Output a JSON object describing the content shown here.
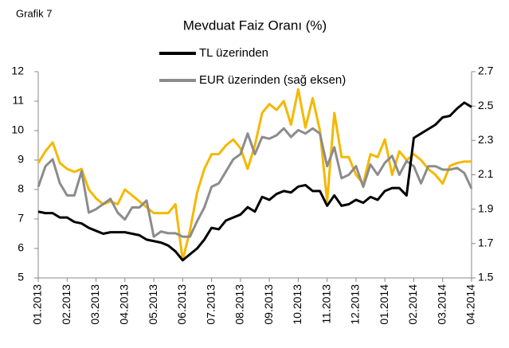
{
  "chart_data": {
    "type": "line",
    "label": "Grafik 7",
    "title": "Mevduat Faiz Oranı (%)",
    "categories": [
      "01.2013",
      null,
      null,
      null,
      "02.2013",
      null,
      null,
      null,
      "03.2013",
      null,
      null,
      null,
      "04.2013",
      null,
      null,
      null,
      "05.2013",
      null,
      null,
      null,
      "06.2013",
      null,
      null,
      null,
      "07.2013",
      null,
      null,
      null,
      "08.2013",
      null,
      null,
      null,
      "09.2013",
      null,
      null,
      null,
      "10.2013",
      null,
      null,
      null,
      "11.2013",
      null,
      null,
      null,
      "12.2013",
      null,
      null,
      null,
      "01.2014",
      null,
      null,
      null,
      "02.2014",
      null,
      null,
      null,
      "03.2014",
      null,
      null,
      null,
      "04.2014"
    ],
    "series": [
      {
        "name": "TL üzerinden",
        "color": "#000000",
        "values": [
          7.25,
          7.2,
          7.2,
          7.05,
          7.05,
          6.9,
          6.85,
          6.7,
          6.6,
          6.5,
          6.55,
          6.55,
          6.55,
          6.5,
          6.45,
          6.3,
          6.25,
          6.2,
          6.1,
          5.9,
          5.6,
          5.8,
          6.0,
          6.3,
          6.7,
          6.65,
          6.95,
          7.05,
          7.15,
          7.4,
          7.25,
          7.75,
          7.65,
          7.85,
          7.95,
          7.9,
          8.1,
          8.15,
          7.95,
          7.95,
          7.45,
          7.8,
          7.45,
          7.5,
          7.65,
          7.55,
          7.75,
          7.65,
          7.95,
          8.05,
          8.05,
          7.8,
          9.75,
          9.9,
          10.05,
          10.2,
          10.45,
          10.5,
          10.75,
          10.95,
          10.8
        ]
      },
      {
        "name": "EUR üzerinden (sağ eksen)",
        "color": "#8c8c8c",
        "axis": "y2",
        "values": [
          2.03,
          2.15,
          2.19,
          2.05,
          1.98,
          1.98,
          2.12,
          1.88,
          1.9,
          1.93,
          1.96,
          1.88,
          1.84,
          1.91,
          1.91,
          1.95,
          1.74,
          1.77,
          1.76,
          1.76,
          1.74,
          1.74,
          1.83,
          1.91,
          2.03,
          2.05,
          2.12,
          2.19,
          2.22,
          2.34,
          2.22,
          2.32,
          2.31,
          2.33,
          2.37,
          2.32,
          2.36,
          2.34,
          2.37,
          2.34,
          2.15,
          2.26,
          2.08,
          2.1,
          2.15,
          2.03,
          2.16,
          2.1,
          2.17,
          2.21,
          2.1,
          2.18,
          2.15,
          2.05,
          2.15,
          2.15,
          2.13,
          2.13,
          2.14,
          2.11,
          2.02
        ]
      },
      {
        "color": "#f5b800",
        "values": [
          8.9,
          9.3,
          9.6,
          8.9,
          8.7,
          8.6,
          8.7,
          8.0,
          7.7,
          7.5,
          7.6,
          7.5,
          8.0,
          7.8,
          7.6,
          7.4,
          7.2,
          7.2,
          7.2,
          7.5,
          5.6,
          6.6,
          7.9,
          8.7,
          9.2,
          9.2,
          9.5,
          9.7,
          9.4,
          8.7,
          9.5,
          10.6,
          10.9,
          10.7,
          11.0,
          10.2,
          11.4,
          10.1,
          11.1,
          10.0,
          7.6,
          10.6,
          9.1,
          9.1,
          8.5,
          8.2,
          9.2,
          9.1,
          9.7,
          8.5,
          9.3,
          9.0,
          9.2,
          9.0,
          8.7,
          8.5,
          8.2,
          8.8,
          8.9,
          8.95,
          8.95
        ]
      }
    ],
    "ylim": [
      5,
      12
    ],
    "yticks": [
      5,
      6,
      7,
      8,
      9,
      10,
      11,
      12
    ],
    "y2lim": [
      1.5,
      2.7
    ],
    "y2ticks": [
      1.5,
      1.7,
      1.9,
      2.1,
      2.3,
      2.5,
      2.7
    ],
    "grid": false
  }
}
